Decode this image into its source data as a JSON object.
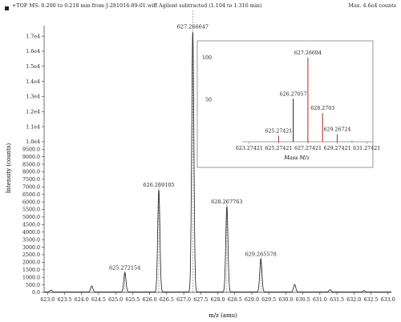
{
  "header": {
    "title": "+TOF MS: 0.200 to 0.218 min from J-281016-89-01.wiff Agilent subtracted (1.104 to 1.316 min)",
    "max_label": "Max. 4.6e4 counts"
  },
  "chart_data": [
    {
      "id": "main",
      "type": "line",
      "ylabel": "Intensity (counts)",
      "xlabel": "m/z (amu)",
      "xlim": [
        622.9,
        633.1
      ],
      "ylim": [
        0,
        17700
      ],
      "x_ticks": [
        "623.0",
        "623.5",
        "624.0",
        "624.5",
        "625.0",
        "625.5",
        "626.0",
        "626.5",
        "627.0",
        "627.5",
        "628.0",
        "628.5",
        "629.0",
        "629.5",
        "630.0",
        "630.5",
        "631.0",
        "631.5",
        "632.0",
        "632.5",
        "633.0"
      ],
      "y_ticks": [
        "0.0",
        "500.0",
        "1000.0",
        "1500.0",
        "2000.0",
        "2500.0",
        "3000.0",
        "3500.0",
        "4000.0",
        "4500.0",
        "5000.0",
        "5500.0",
        "6000.0",
        "6500.0",
        "7000.0",
        "7500.0",
        "8000.0",
        "8500.0",
        "9000.0",
        "9500.0",
        "1.0e4",
        "1.1e4",
        "1.2e4",
        "1.3e4",
        "1.4e4",
        "1.5e4",
        "1.6e4",
        "1.7e4"
      ],
      "peaks": [
        {
          "x": 623.1,
          "y": 120,
          "label": ""
        },
        {
          "x": 624.3,
          "y": 400,
          "label": ""
        },
        {
          "x": 625.272154,
          "y": 1300,
          "label": "625.272154"
        },
        {
          "x": 626.269105,
          "y": 6800,
          "label": "626.269105"
        },
        {
          "x": 627.266647,
          "y": 17300,
          "label": "627.266647"
        },
        {
          "x": 628.267763,
          "y": 5700,
          "label": "628.267763"
        },
        {
          "x": 629.265578,
          "y": 2200,
          "label": "629.265578"
        },
        {
          "x": 630.26,
          "y": 500,
          "label": ""
        },
        {
          "x": 631.3,
          "y": 150,
          "label": ""
        },
        {
          "x": 632.3,
          "y": 90,
          "label": ""
        }
      ]
    },
    {
      "id": "inset",
      "type": "bar",
      "xlabel": "Mass M/z",
      "xlim": [
        622.9,
        631.7
      ],
      "ylim": [
        0,
        115
      ],
      "x_ticks": [
        "623.27421",
        "625.27421",
        "627.27421",
        "629.27421",
        "631.27421"
      ],
      "y_ticks": [
        "50",
        "100"
      ],
      "bars": [
        {
          "x": 625.27421,
          "y": 7,
          "label": "625.27421"
        },
        {
          "x": 626.27057,
          "y": 51,
          "label": "626.27057"
        },
        {
          "x": 627.26694,
          "y": 100,
          "label": "627.26694"
        },
        {
          "x": 628.2703,
          "y": 34,
          "label": "628.2703"
        },
        {
          "x": 629.26724,
          "y": 9,
          "label": "629.26724"
        },
        {
          "x": 630.27,
          "y": 1,
          "label": ""
        }
      ]
    }
  ]
}
